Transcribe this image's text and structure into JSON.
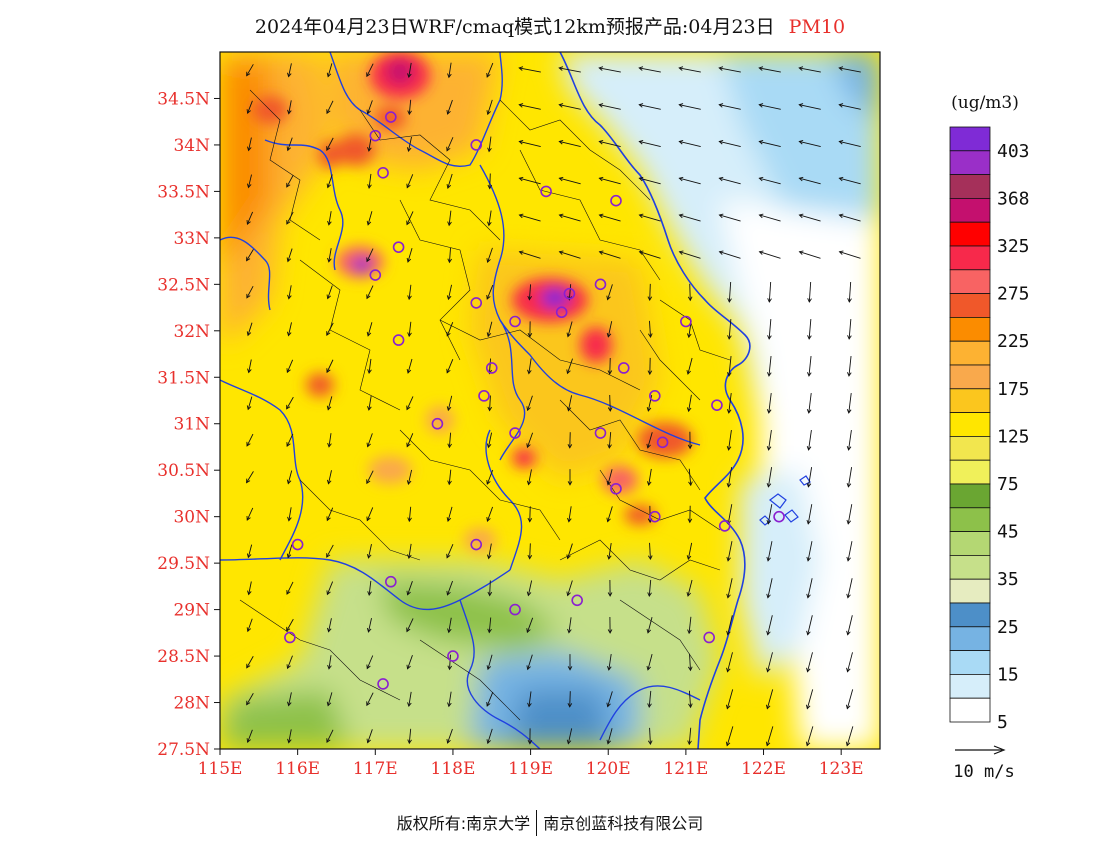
{
  "title": {
    "main": "2024年04月23日WRF/cmaq模式12km预报产品:04月23日",
    "species": "PM10"
  },
  "map": {
    "lat_labels": [
      "34.5N",
      "34N",
      "33.5N",
      "33N",
      "32.5N",
      "32N",
      "31.5N",
      "31N",
      "30.5N",
      "30N",
      "29.5N",
      "29N",
      "28.5N",
      "28N",
      "27.5N"
    ],
    "lon_labels": [
      "115E",
      "116E",
      "117E",
      "118E",
      "119E",
      "120E",
      "121E",
      "122E",
      "123E"
    ],
    "lat_range": [
      27.5,
      35.0
    ],
    "lon_range": [
      115.0,
      123.5
    ],
    "tick_label_color": "#e8302c",
    "boundary_color": "#2040e0",
    "monitor_marker_color": "#8a1fd0",
    "dominant_wind": "north to northeasterly, turning northerly offshore"
  },
  "legend": {
    "unit": "(ug/m3)",
    "labels": [
      "403",
      "368",
      "325",
      "275",
      "225",
      "175",
      "125",
      "75",
      "45",
      "35",
      "25",
      "15",
      "5"
    ],
    "colors": [
      "#7f2bd6",
      "#9a2fc8",
      "#a5305a",
      "#c4106e",
      "#ff0000",
      "#f7294b",
      "#f86363",
      "#f0582a",
      "#fb8c00",
      "#fdb232",
      "#f9a94c",
      "#fbc61e",
      "#ffe600",
      "#f2e64e",
      "#f0f05a",
      "#6aa632",
      "#8dc14a",
      "#b4d773",
      "#c6e08a",
      "#e6ecc0",
      "#4d8fc8",
      "#76b3e3",
      "#a9daf5",
      "#d6eefa",
      "#ffffff"
    ]
  },
  "wind_legend": {
    "label": "10 m/s"
  },
  "footer": {
    "left": "版权所有:南京大学",
    "right": "南京创蓝科技有限公司"
  }
}
